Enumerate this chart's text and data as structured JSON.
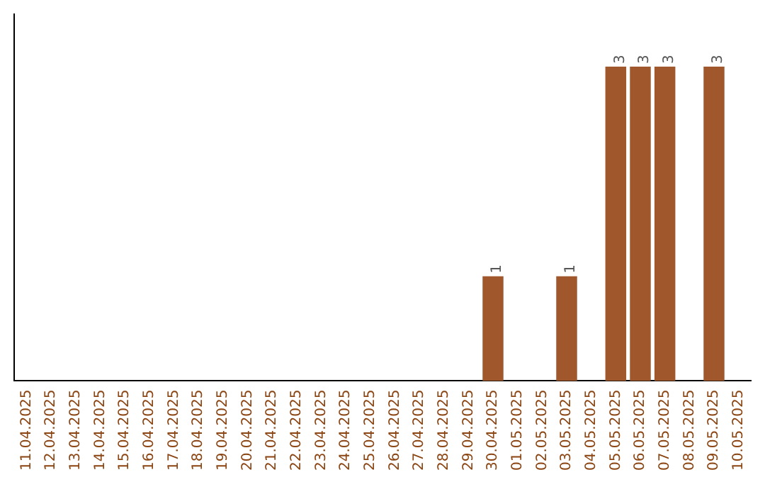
{
  "chart_data": {
    "type": "bar",
    "categories": [
      "11.04.2025",
      "12.04.2025",
      "13.04.2025",
      "14.04.2025",
      "15.04.2025",
      "16.04.2025",
      "17.04.2025",
      "18.04.2025",
      "19.04.2025",
      "20.04.2025",
      "21.04.2025",
      "22.04.2025",
      "23.04.2025",
      "24.04.2025",
      "25.04.2025",
      "26.04.2025",
      "27.04.2025",
      "28.04.2025",
      "29.04.2025",
      "30.04.2025",
      "01.05.2025",
      "02.05.2025",
      "03.05.2025",
      "04.05.2025",
      "05.05.2025",
      "06.05.2025",
      "07.05.2025",
      "08.05.2025",
      "09.05.2025",
      "10.05.2025"
    ],
    "values": [
      null,
      null,
      null,
      null,
      null,
      null,
      null,
      null,
      null,
      null,
      null,
      null,
      null,
      null,
      null,
      null,
      null,
      null,
      null,
      1,
      null,
      null,
      1,
      null,
      3,
      3,
      3,
      null,
      3,
      null
    ],
    "color": "#a0572b",
    "data_labels": true,
    "grid": false,
    "legend": false
  }
}
